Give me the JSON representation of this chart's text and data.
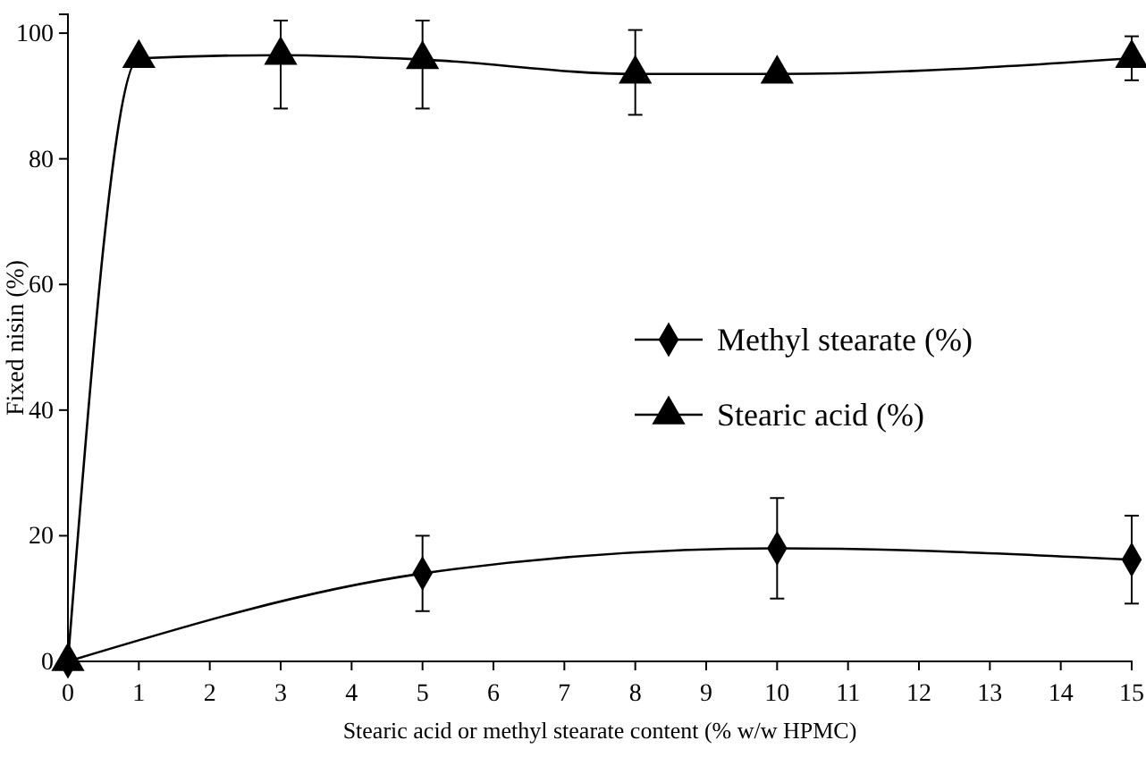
{
  "chart_data": {
    "type": "line",
    "xlabel": "Stearic acid or methyl stearate content (% w/w HPMC)",
    "ylabel": "Fixed nisin (%)",
    "xlim": [
      0,
      15
    ],
    "xticks": [
      0,
      1,
      2,
      3,
      4,
      5,
      6,
      7,
      8,
      9,
      10,
      11,
      12,
      13,
      14,
      15
    ],
    "ylim": [
      0,
      103
    ],
    "yticks": [
      0,
      20,
      40,
      60,
      80,
      100
    ],
    "grid": false,
    "legend": "right",
    "series": [
      {
        "name": "Methyl stearate (%)",
        "color": "#000000",
        "marker": "diamond",
        "x": [
          0,
          5,
          10,
          15
        ],
        "values": [
          0,
          14,
          18,
          16.2
        ],
        "errors": [
          null,
          6,
          8,
          7
        ]
      },
      {
        "name": "Stearic acid (%)",
        "color": "#000000",
        "marker": "triangle",
        "x": [
          0,
          1,
          3,
          5,
          8,
          10,
          15
        ],
        "values": [
          0,
          96,
          96.5,
          95.8,
          93.5,
          93.5,
          96
        ],
        "errors": [
          null,
          null,
          [
            88,
            102
          ],
          [
            88,
            102
          ],
          [
            87,
            100.5
          ],
          null,
          [
            92.5,
            99.5
          ]
        ]
      }
    ]
  }
}
